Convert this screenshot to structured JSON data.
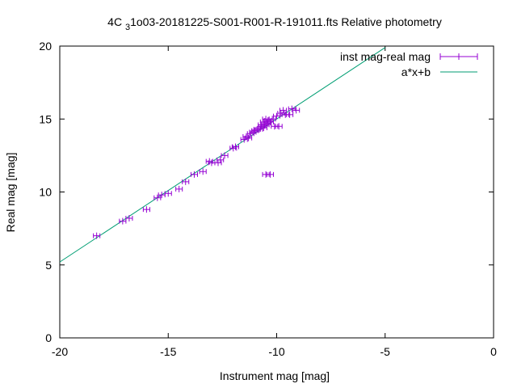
{
  "chart_data": {
    "type": "scatter",
    "title": "4C 31o03-20181225-S001-R001-R-191011.fts Relative photometry",
    "title_parts": {
      "before": "4C ",
      "subscript": "3",
      "after": "1o03-20181225-S001-R001-R-191011.fts Relative photometry"
    },
    "xlabel": "Instrument mag [mag]",
    "ylabel": "Real mag [mag]",
    "xlim": [
      -20,
      0
    ],
    "ylim": [
      0,
      20
    ],
    "x_ticks": [
      -20,
      -15,
      -10,
      -5,
      0
    ],
    "x_tick_labels": [
      "-20",
      "-15",
      "-10",
      "-5",
      "0"
    ],
    "y_ticks": [
      0,
      5,
      10,
      15,
      20
    ],
    "y_tick_labels": [
      "0",
      "5",
      "10",
      "15",
      "20"
    ],
    "grid": false,
    "legend_position": "top-right",
    "series": [
      {
        "name": "inst mag-real mag",
        "kind": "points-with-xerrorbars",
        "color": "#9400d3",
        "x_error": 0.15,
        "points": [
          [
            -18.3,
            7.0
          ],
          [
            -17.1,
            8.0
          ],
          [
            -16.8,
            8.2
          ],
          [
            -16.0,
            8.8
          ],
          [
            -15.5,
            9.6
          ],
          [
            -15.3,
            9.8
          ],
          [
            -15.0,
            9.9
          ],
          [
            -14.5,
            10.2
          ],
          [
            -14.2,
            10.7
          ],
          [
            -13.8,
            11.2
          ],
          [
            -13.4,
            11.4
          ],
          [
            -13.1,
            12.1
          ],
          [
            -13.0,
            12.0
          ],
          [
            -12.7,
            12.0
          ],
          [
            -12.6,
            12.2
          ],
          [
            -12.4,
            12.5
          ],
          [
            -12.0,
            13.0
          ],
          [
            -11.9,
            13.1
          ],
          [
            -11.5,
            13.6
          ],
          [
            -11.4,
            13.8
          ],
          [
            -11.3,
            13.7
          ],
          [
            -11.2,
            14.0
          ],
          [
            -11.1,
            14.1
          ],
          [
            -11.0,
            14.2
          ],
          [
            -10.9,
            14.3
          ],
          [
            -10.8,
            14.3
          ],
          [
            -10.7,
            14.5
          ],
          [
            -10.7,
            14.6
          ],
          [
            -10.6,
            14.4
          ],
          [
            -10.6,
            14.8
          ],
          [
            -10.5,
            14.6
          ],
          [
            -10.5,
            15.0
          ],
          [
            -10.4,
            14.9
          ],
          [
            -10.4,
            14.7
          ],
          [
            -10.3,
            14.8
          ],
          [
            -10.2,
            15.0
          ],
          [
            -10.1,
            14.5
          ],
          [
            -10.0,
            15.2
          ],
          [
            -9.9,
            14.5
          ],
          [
            -9.8,
            15.4
          ],
          [
            -9.7,
            15.6
          ],
          [
            -9.6,
            15.3
          ],
          [
            -9.4,
            15.3
          ],
          [
            -9.3,
            15.7
          ],
          [
            -9.1,
            15.6
          ],
          [
            -10.5,
            11.2
          ],
          [
            -10.3,
            11.2
          ]
        ]
      },
      {
        "name": "a*x+b",
        "kind": "line",
        "color": "#009e73",
        "x": [
          -20,
          -5
        ],
        "y": [
          5.2,
          19.9
        ]
      }
    ]
  }
}
